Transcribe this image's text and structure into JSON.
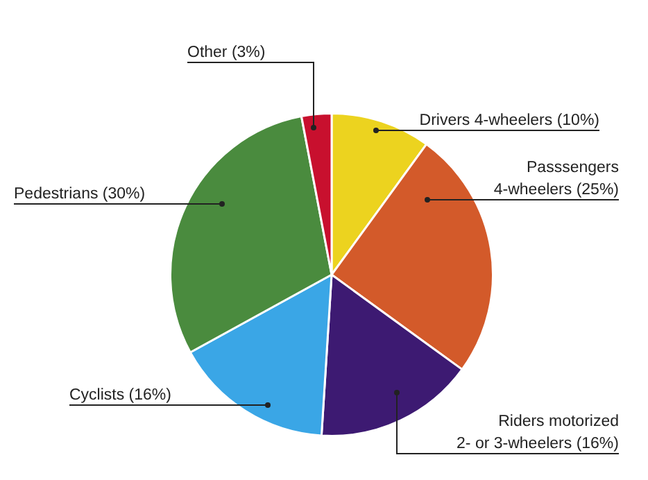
{
  "chart_data": {
    "type": "pie",
    "categories": [
      "Drivers 4-wheelers (10%)",
      "Passsengers 4-wheelers (25%)",
      "Riders motorized 2- or 3-wheelers (16%)",
      "Cyclists (16%)",
      "Pedestrians (30%)",
      "Other (3%)"
    ],
    "values": [
      10,
      25,
      16,
      16,
      30,
      3
    ],
    "colors": [
      "#ecd31f",
      "#d35a2a",
      "#3d1a72",
      "#3aa6e6",
      "#4a8b3e",
      "#c8102e"
    ],
    "legend": false
  }
}
